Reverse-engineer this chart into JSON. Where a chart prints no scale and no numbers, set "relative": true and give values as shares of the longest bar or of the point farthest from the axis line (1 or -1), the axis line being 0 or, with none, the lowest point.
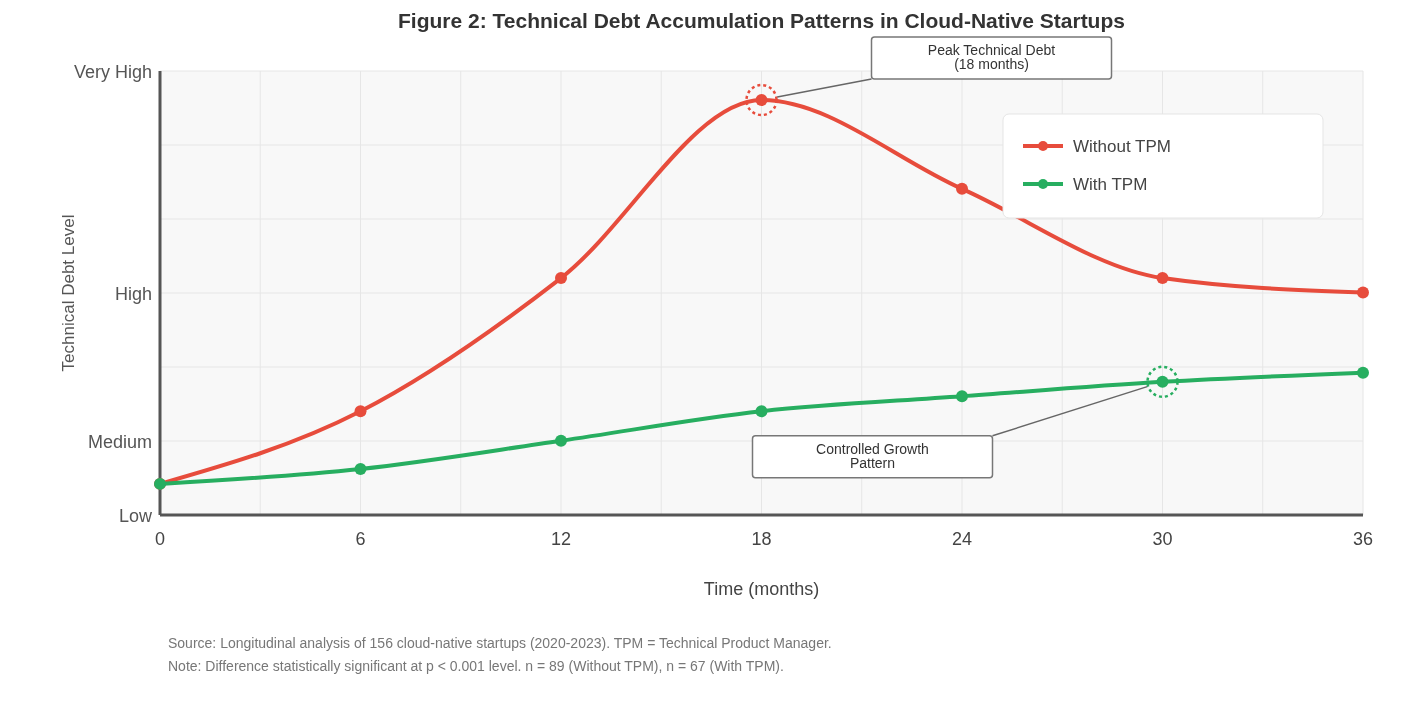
{
  "chart_data": {
    "type": "line",
    "relative": true,
    "title": "Figure 2: Technical Debt Accumulation Patterns in Cloud-Native Startups",
    "xlabel": "Time (months)",
    "ylabel": "Technical Debt Level",
    "x": [
      0,
      6,
      12,
      18,
      24,
      30,
      36
    ],
    "series": [
      {
        "name": "Without TPM",
        "color": "#e74c3c",
        "values": [
          0.075,
          0.25,
          0.571,
          1,
          0.786,
          0.571,
          0.536
        ]
      },
      {
        "name": "With TPM",
        "color": "#27ae60",
        "values": [
          0.075,
          0.111,
          0.179,
          0.25,
          0.286,
          0.321,
          0.343
        ]
      }
    ],
    "xlim": [
      0,
      36
    ],
    "xticks": [
      0,
      {
        "value": 3,
        "label": null
      },
      6,
      {
        "value": 9,
        "label": null
      },
      12,
      {
        "value": 15,
        "label": null
      },
      18,
      {
        "value": 21,
        "label": null
      },
      24,
      {
        "value": 27,
        "label": null
      },
      30,
      {
        "value": 33,
        "label": null
      },
      36
    ],
    "grid": true,
    "legend": "top right",
    "marker": "circle",
    "line_style": "solid",
    "annotations": [
      "Peak Technical Debt\n(18 months)",
      "Controlled Growth\nPattern",
      "Low",
      "Medium",
      "High",
      "Very High",
      "Source: Longitudinal analysis of 156 cloud-native startups (2020-2023). TPM = Technical Product Manager.",
      "Note: Difference statistically significant at p < 0.001 level. n = 89 (Without TPM), n = 67 (With TPM)."
    ]
  }
}
